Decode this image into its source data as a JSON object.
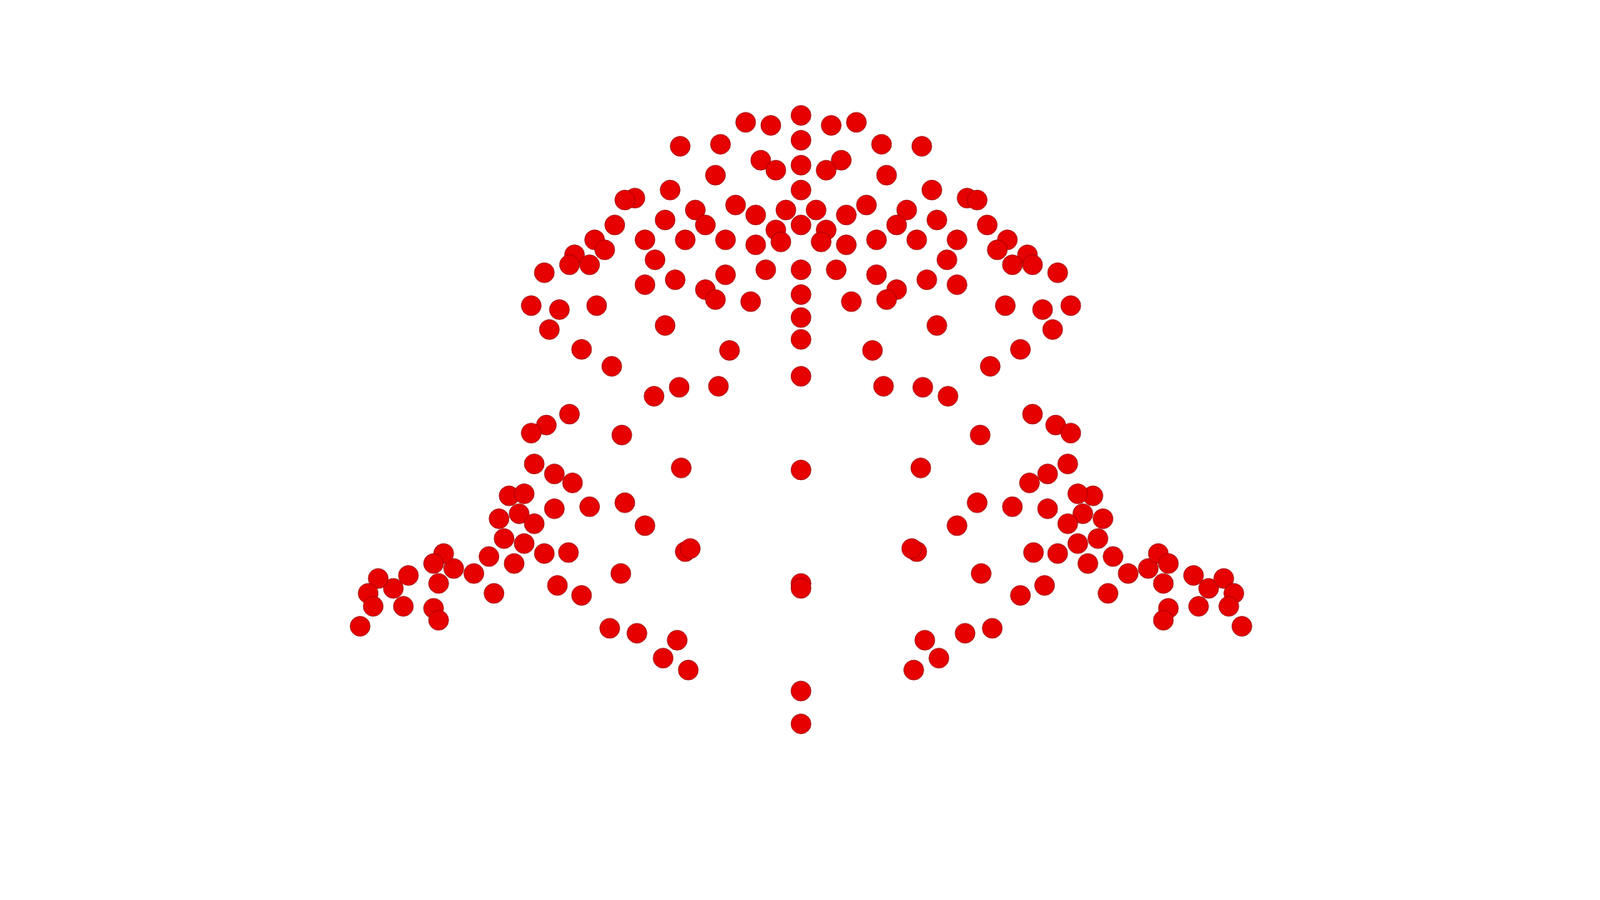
{
  "chart_data": {
    "type": "scatter",
    "marker": "circle",
    "color": "#e60000",
    "grid": false,
    "tick_labels": false,
    "xlim": [
      0,
      1568
    ],
    "ylim": [
      0,
      882
    ],
    "x": [
      730,
      755,
      665,
      705,
      745,
      760,
      700,
      620,
      610,
      655,
      680,
      720,
      740,
      690,
      650,
      600,
      580,
      560,
      590,
      630,
      670,
      710,
      740,
      760,
      770,
      640,
      660,
      690,
      710,
      735,
      700,
      630,
      575,
      555,
      530,
      545,
      517,
      535,
      582,
      650,
      567,
      597,
      714,
      703,
      664,
      639,
      765,
      750,
      555,
      532,
      517,
      607,
      666,
      520,
      540,
      558,
      495,
      510,
      575,
      610,
      485,
      505,
      520,
      540,
      490,
      510,
      530,
      500,
      475,
      630,
      554,
      670,
      675,
      460,
      440,
      430,
      420,
      425,
      395,
      380,
      365,
      355,
      360,
      390,
      420,
      425,
      347,
      480,
      543,
      567,
      606,
      595,
      622,
      662,
      648,
      673,
      840,
      815,
      905,
      865,
      825,
      810,
      870,
      950,
      960,
      915,
      890,
      850,
      830,
      880,
      920,
      970,
      990,
      1010,
      980,
      940,
      900,
      860,
      830,
      810,
      800,
      930,
      910,
      880,
      860,
      835,
      870,
      940,
      995,
      1015,
      1040,
      1025,
      1053,
      1035,
      988,
      920,
      1003,
      973,
      856,
      867,
      906,
      931,
      805,
      820,
      1015,
      1038,
      1053,
      963,
      904,
      1050,
      1030,
      1012,
      1075,
      1060,
      995,
      960,
      1085,
      1065,
      1050,
      1030,
      1080,
      1060,
      1040,
      1070,
      1095,
      940,
      1016,
      900,
      895,
      1110,
      1130,
      1140,
      1150,
      1145,
      1175,
      1190,
      1205,
      1215,
      1210,
      1180,
      1150,
      1145,
      1223,
      1090,
      1027,
      1003,
      964,
      975,
      948,
      908,
      922,
      897,
      785,
      785,
      785,
      785,
      785,
      785,
      785,
      785,
      785,
      785,
      785,
      785,
      785,
      785,
      785
    ],
    "values": [
      770,
      767,
      746,
      748,
      732,
      722,
      717,
      694,
      692,
      702,
      682,
      687,
      677,
      667,
      672,
      667,
      652,
      637,
      642,
      652,
      652,
      652,
      647,
      662,
      682,
      632,
      612,
      602,
      617,
      590,
      592,
      607,
      627,
      627,
      619,
      582,
      586,
      562,
      586,
      566,
      542,
      525,
      541,
      505,
      504,
      495,
      650,
      622,
      477,
      466,
      458,
      456,
      423,
      427,
      417,
      408,
      395,
      397,
      384,
      388,
      372,
      377,
      367,
      382,
      352,
      347,
      337,
      327,
      334,
      365,
      338,
      339,
      342,
      317,
      322,
      337,
      327,
      307,
      315,
      302,
      312,
      297,
      284,
      284,
      282,
      270,
      264,
      297,
      305,
      295,
      317,
      262,
      257,
      250,
      232,
      220,
      770,
      767,
      746,
      748,
      732,
      722,
      717,
      694,
      692,
      702,
      682,
      687,
      677,
      667,
      672,
      667,
      652,
      637,
      642,
      652,
      652,
      652,
      647,
      662,
      682,
      632,
      612,
      602,
      617,
      590,
      592,
      607,
      627,
      627,
      619,
      582,
      586,
      562,
      586,
      566,
      542,
      525,
      541,
      505,
      504,
      495,
      650,
      622,
      477,
      466,
      458,
      456,
      423,
      427,
      417,
      408,
      395,
      397,
      384,
      388,
      372,
      377,
      367,
      382,
      352,
      347,
      337,
      327,
      334,
      365,
      338,
      339,
      342,
      317,
      322,
      337,
      327,
      307,
      315,
      302,
      312,
      297,
      284,
      284,
      282,
      270,
      264,
      297,
      305,
      295,
      317,
      262,
      257,
      250,
      232,
      220,
      777,
      752,
      727,
      702,
      667,
      622,
      597,
      574,
      552,
      515,
      421,
      307,
      302,
      199,
      166
    ]
  }
}
